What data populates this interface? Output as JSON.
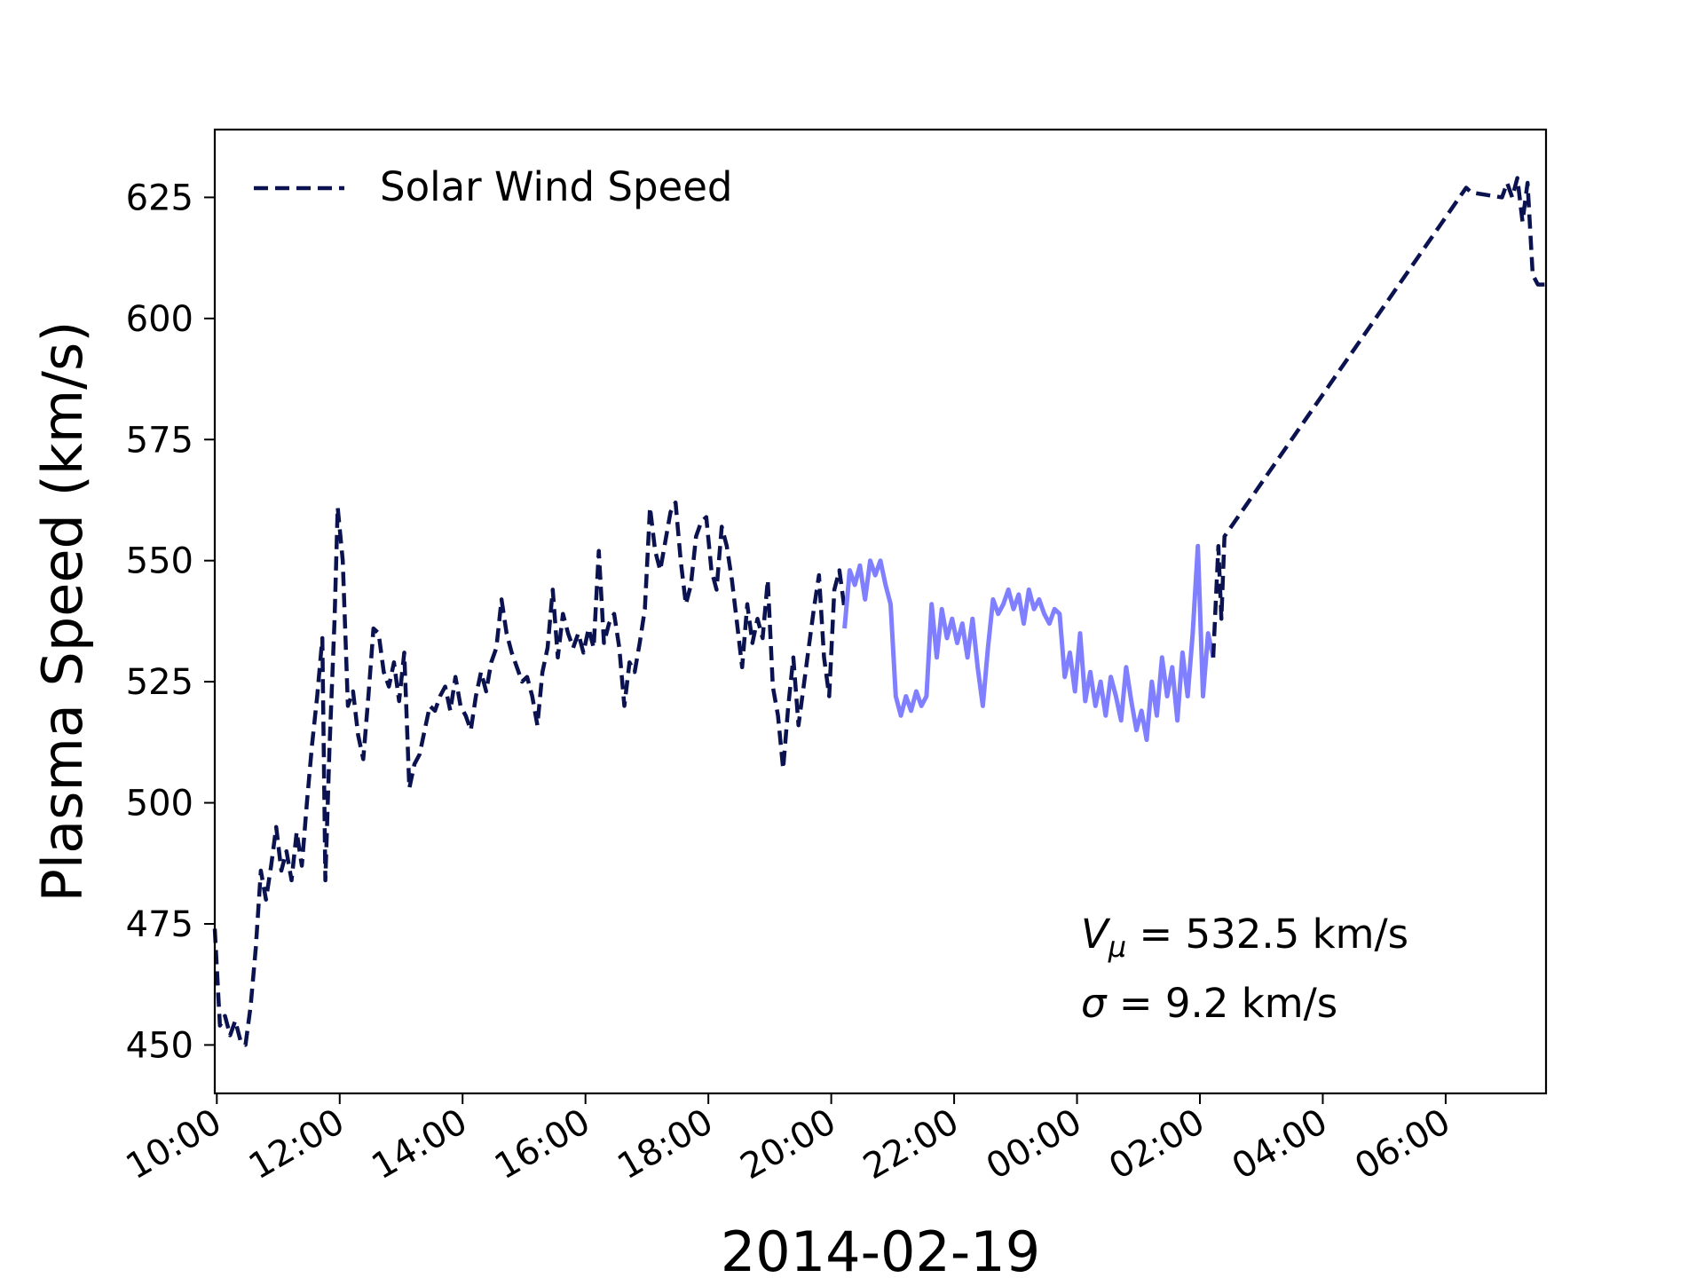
{
  "chart_data": {
    "type": "line",
    "title": "",
    "xlabel": "2014-02-19",
    "ylabel": "Plasma Speed (km/s)",
    "x_axis": {
      "unit": "datetime",
      "range": [
        "2014-02-19T09:58",
        "2014-02-20T07:38"
      ],
      "ticks": [
        {
          "t": "2014-02-19T10:00",
          "label": "10:00"
        },
        {
          "t": "2014-02-19T12:00",
          "label": "12:00"
        },
        {
          "t": "2014-02-19T14:00",
          "label": "14:00"
        },
        {
          "t": "2014-02-19T16:00",
          "label": "16:00"
        },
        {
          "t": "2014-02-19T18:00",
          "label": "18:00"
        },
        {
          "t": "2014-02-19T20:00",
          "label": "20:00"
        },
        {
          "t": "2014-02-19T22:00",
          "label": "22:00"
        },
        {
          "t": "2014-02-20T00:00",
          "label": "00:00"
        },
        {
          "t": "2014-02-20T02:00",
          "label": "02:00"
        },
        {
          "t": "2014-02-20T04:00",
          "label": "04:00"
        },
        {
          "t": "2014-02-20T06:00",
          "label": "06:00"
        }
      ]
    },
    "ylim": [
      440,
      639
    ],
    "y_ticks": [
      450,
      475,
      500,
      525,
      550,
      575,
      600,
      625
    ],
    "grid": false,
    "legend": {
      "position": "top-left",
      "entries": [
        {
          "label": "Solar Wind Speed",
          "style": "dashed",
          "color": "#0b1250"
        }
      ]
    },
    "series": [
      {
        "name": "Solar Wind Speed",
        "color": "#0b1250",
        "style": "dashed",
        "points": [
          [
            "2014-02-19T09:58",
            474
          ],
          [
            "2014-02-19T10:03",
            454
          ],
          [
            "2014-02-19T10:08",
            456
          ],
          [
            "2014-02-19T10:13",
            452
          ],
          [
            "2014-02-19T10:18",
            455
          ],
          [
            "2014-02-19T10:23",
            451
          ],
          [
            "2014-02-19T10:28",
            450
          ],
          [
            "2014-02-19T10:33",
            458
          ],
          [
            "2014-02-19T10:38",
            470
          ],
          [
            "2014-02-19T10:43",
            486
          ],
          [
            "2014-02-19T10:48",
            480
          ],
          [
            "2014-02-19T10:53",
            487
          ],
          [
            "2014-02-19T10:58",
            495
          ],
          [
            "2014-02-19T11:03",
            486
          ],
          [
            "2014-02-19T11:08",
            490
          ],
          [
            "2014-02-19T11:13",
            484
          ],
          [
            "2014-02-19T11:18",
            494
          ],
          [
            "2014-02-19T11:23",
            487
          ],
          [
            "2014-02-19T11:28",
            500
          ],
          [
            "2014-02-19T11:33",
            512
          ],
          [
            "2014-02-19T11:38",
            522
          ],
          [
            "2014-02-19T11:43",
            534
          ],
          [
            "2014-02-19T11:46",
            484
          ],
          [
            "2014-02-19T11:50",
            511
          ],
          [
            "2014-02-19T11:55",
            538
          ],
          [
            "2014-02-19T11:58",
            561
          ],
          [
            "2014-02-19T12:03",
            550
          ],
          [
            "2014-02-19T12:08",
            520
          ],
          [
            "2014-02-19T12:13",
            523
          ],
          [
            "2014-02-19T12:18",
            514
          ],
          [
            "2014-02-19T12:23",
            509
          ],
          [
            "2014-02-19T12:28",
            522
          ],
          [
            "2014-02-19T12:33",
            536
          ],
          [
            "2014-02-19T12:38",
            535
          ],
          [
            "2014-02-19T12:43",
            527
          ],
          [
            "2014-02-19T12:48",
            524
          ],
          [
            "2014-02-19T12:53",
            529
          ],
          [
            "2014-02-19T12:58",
            521
          ],
          [
            "2014-02-19T13:03",
            531
          ],
          [
            "2014-02-19T13:08",
            503
          ],
          [
            "2014-02-19T13:13",
            508
          ],
          [
            "2014-02-19T13:18",
            510
          ],
          [
            "2014-02-19T13:23",
            515
          ],
          [
            "2014-02-19T13:28",
            520
          ],
          [
            "2014-02-19T13:33",
            519
          ],
          [
            "2014-02-19T13:38",
            522
          ],
          [
            "2014-02-19T13:43",
            524
          ],
          [
            "2014-02-19T13:48",
            519
          ],
          [
            "2014-02-19T13:53",
            526
          ],
          [
            "2014-02-19T13:58",
            520
          ],
          [
            "2014-02-19T14:03",
            518
          ],
          [
            "2014-02-19T14:08",
            515
          ],
          [
            "2014-02-19T14:13",
            522
          ],
          [
            "2014-02-19T14:18",
            527
          ],
          [
            "2014-02-19T14:23",
            523
          ],
          [
            "2014-02-19T14:28",
            529
          ],
          [
            "2014-02-19T14:33",
            532
          ],
          [
            "2014-02-19T14:38",
            542
          ],
          [
            "2014-02-19T14:43",
            535
          ],
          [
            "2014-02-19T14:48",
            531
          ],
          [
            "2014-02-19T14:53",
            528
          ],
          [
            "2014-02-19T14:58",
            525
          ],
          [
            "2014-02-19T15:03",
            526
          ],
          [
            "2014-02-19T15:08",
            522
          ],
          [
            "2014-02-19T15:13",
            516
          ],
          [
            "2014-02-19T15:18",
            527
          ],
          [
            "2014-02-19T15:23",
            532
          ],
          [
            "2014-02-19T15:28",
            544
          ],
          [
            "2014-02-19T15:33",
            530
          ],
          [
            "2014-02-19T15:38",
            539
          ],
          [
            "2014-02-19T15:43",
            535
          ],
          [
            "2014-02-19T15:48",
            532
          ],
          [
            "2014-02-19T15:53",
            535
          ],
          [
            "2014-02-19T15:58",
            531
          ],
          [
            "2014-02-19T16:03",
            536
          ],
          [
            "2014-02-19T16:08",
            532
          ],
          [
            "2014-02-19T16:13",
            552
          ],
          [
            "2014-02-19T16:18",
            533
          ],
          [
            "2014-02-19T16:23",
            537
          ],
          [
            "2014-02-19T16:28",
            539
          ],
          [
            "2014-02-19T16:33",
            532
          ],
          [
            "2014-02-19T16:38",
            520
          ],
          [
            "2014-02-19T16:43",
            529
          ],
          [
            "2014-02-19T16:48",
            527
          ],
          [
            "2014-02-19T16:53",
            533
          ],
          [
            "2014-02-19T16:58",
            540
          ],
          [
            "2014-02-19T17:03",
            561
          ],
          [
            "2014-02-19T17:08",
            552
          ],
          [
            "2014-02-19T17:13",
            548
          ],
          [
            "2014-02-19T17:18",
            554
          ],
          [
            "2014-02-19T17:23",
            560
          ],
          [
            "2014-02-19T17:28",
            562
          ],
          [
            "2014-02-19T17:33",
            550
          ],
          [
            "2014-02-19T17:38",
            541
          ],
          [
            "2014-02-19T17:43",
            545
          ],
          [
            "2014-02-19T17:48",
            555
          ],
          [
            "2014-02-19T17:53",
            558
          ],
          [
            "2014-02-19T17:58",
            559
          ],
          [
            "2014-02-19T18:03",
            548
          ],
          [
            "2014-02-19T18:08",
            544
          ],
          [
            "2014-02-19T18:13",
            557
          ],
          [
            "2014-02-19T18:18",
            553
          ],
          [
            "2014-02-19T18:23",
            546
          ],
          [
            "2014-02-19T18:28",
            537
          ],
          [
            "2014-02-19T18:33",
            528
          ],
          [
            "2014-02-19T18:38",
            541
          ],
          [
            "2014-02-19T18:43",
            533
          ],
          [
            "2014-02-19T18:48",
            538
          ],
          [
            "2014-02-19T18:53",
            534
          ],
          [
            "2014-02-19T18:58",
            546
          ],
          [
            "2014-02-19T19:03",
            524
          ],
          [
            "2014-02-19T19:08",
            518
          ],
          [
            "2014-02-19T19:13",
            507
          ],
          [
            "2014-02-19T19:18",
            520
          ],
          [
            "2014-02-19T19:23",
            530
          ],
          [
            "2014-02-19T19:28",
            516
          ],
          [
            "2014-02-19T19:33",
            524
          ],
          [
            "2014-02-19T19:38",
            532
          ],
          [
            "2014-02-19T19:43",
            540
          ],
          [
            "2014-02-19T19:48",
            547
          ],
          [
            "2014-02-19T19:53",
            530
          ],
          [
            "2014-02-19T19:58",
            522
          ],
          [
            "2014-02-19T20:03",
            544
          ],
          [
            "2014-02-19T20:08",
            548
          ],
          [
            "2014-02-19T20:13",
            540
          ]
        ]
      },
      {
        "name": "",
        "color": "#7f7fff",
        "style": "solid",
        "points": [
          [
            "2014-02-19T20:13",
            536
          ],
          [
            "2014-02-19T20:18",
            548
          ],
          [
            "2014-02-19T20:23",
            545
          ],
          [
            "2014-02-19T20:28",
            549
          ],
          [
            "2014-02-19T20:33",
            542
          ],
          [
            "2014-02-19T20:38",
            550
          ],
          [
            "2014-02-19T20:43",
            547
          ],
          [
            "2014-02-19T20:48",
            550
          ],
          [
            "2014-02-19T20:53",
            545
          ],
          [
            "2014-02-19T20:58",
            541
          ],
          [
            "2014-02-19T21:03",
            522
          ],
          [
            "2014-02-19T21:08",
            518
          ],
          [
            "2014-02-19T21:13",
            522
          ],
          [
            "2014-02-19T21:18",
            519
          ],
          [
            "2014-02-19T21:23",
            523
          ],
          [
            "2014-02-19T21:28",
            520
          ],
          [
            "2014-02-19T21:33",
            522
          ],
          [
            "2014-02-19T21:38",
            541
          ],
          [
            "2014-02-19T21:43",
            530
          ],
          [
            "2014-02-19T21:48",
            540
          ],
          [
            "2014-02-19T21:53",
            534
          ],
          [
            "2014-02-19T21:58",
            538
          ],
          [
            "2014-02-19T22:03",
            533
          ],
          [
            "2014-02-19T22:08",
            537
          ],
          [
            "2014-02-19T22:13",
            530
          ],
          [
            "2014-02-19T22:18",
            538
          ],
          [
            "2014-02-19T22:23",
            528
          ],
          [
            "2014-02-19T22:28",
            520
          ],
          [
            "2014-02-19T22:33",
            532
          ],
          [
            "2014-02-19T22:38",
            542
          ],
          [
            "2014-02-19T22:43",
            539
          ],
          [
            "2014-02-19T22:48",
            541
          ],
          [
            "2014-02-19T22:53",
            544
          ],
          [
            "2014-02-19T22:58",
            540
          ],
          [
            "2014-02-19T23:03",
            543
          ],
          [
            "2014-02-19T23:08",
            537
          ],
          [
            "2014-02-19T23:13",
            544
          ],
          [
            "2014-02-19T23:18",
            540
          ],
          [
            "2014-02-19T23:23",
            542
          ],
          [
            "2014-02-19T23:28",
            539
          ],
          [
            "2014-02-19T23:33",
            537
          ],
          [
            "2014-02-19T23:38",
            540
          ],
          [
            "2014-02-19T23:43",
            539
          ],
          [
            "2014-02-19T23:48",
            526
          ],
          [
            "2014-02-19T23:53",
            531
          ],
          [
            "2014-02-19T23:58",
            523
          ],
          [
            "2014-02-20T00:03",
            535
          ],
          [
            "2014-02-20T00:08",
            521
          ],
          [
            "2014-02-20T00:13",
            527
          ],
          [
            "2014-02-20T00:18",
            520
          ],
          [
            "2014-02-20T00:23",
            525
          ],
          [
            "2014-02-20T00:28",
            518
          ],
          [
            "2014-02-20T00:33",
            526
          ],
          [
            "2014-02-20T00:38",
            522
          ],
          [
            "2014-02-20T00:43",
            517
          ],
          [
            "2014-02-20T00:48",
            528
          ],
          [
            "2014-02-20T00:53",
            521
          ],
          [
            "2014-02-20T00:58",
            515
          ],
          [
            "2014-02-20T01:03",
            519
          ],
          [
            "2014-02-20T01:08",
            513
          ],
          [
            "2014-02-20T01:13",
            525
          ],
          [
            "2014-02-20T01:18",
            518
          ],
          [
            "2014-02-20T01:23",
            530
          ],
          [
            "2014-02-20T01:28",
            522
          ],
          [
            "2014-02-20T01:33",
            528
          ],
          [
            "2014-02-20T01:38",
            517
          ],
          [
            "2014-02-20T01:43",
            531
          ],
          [
            "2014-02-20T01:48",
            522
          ],
          [
            "2014-02-20T01:53",
            535
          ],
          [
            "2014-02-20T01:58",
            553
          ],
          [
            "2014-02-20T02:03",
            522
          ],
          [
            "2014-02-20T02:08",
            535
          ],
          [
            "2014-02-20T02:13",
            530
          ]
        ]
      },
      {
        "name": "",
        "color": "#0b1250",
        "style": "dashed",
        "points": [
          [
            "2014-02-20T02:13",
            530
          ],
          [
            "2014-02-20T02:18",
            553
          ],
          [
            "2014-02-20T02:21",
            538
          ],
          [
            "2014-02-20T02:24",
            555
          ],
          [
            "2014-02-20T06:20",
            627
          ],
          [
            "2014-02-20T06:25",
            626
          ],
          [
            "2014-02-20T06:55",
            625
          ],
          [
            "2014-02-20T07:00",
            628
          ],
          [
            "2014-02-20T07:05",
            625
          ],
          [
            "2014-02-20T07:10",
            629
          ],
          [
            "2014-02-20T07:15",
            620
          ],
          [
            "2014-02-20T07:20",
            628
          ],
          [
            "2014-02-20T07:25",
            609
          ],
          [
            "2014-02-20T07:30",
            607
          ],
          [
            "2014-02-20T07:38",
            607
          ]
        ]
      }
    ],
    "annotations": [
      {
        "text": "Vμ = 532.5 km/s",
        "color": "#7f7fff"
      },
      {
        "text": "σ = 9.2 km/s",
        "color": "#7f7fff"
      }
    ]
  }
}
